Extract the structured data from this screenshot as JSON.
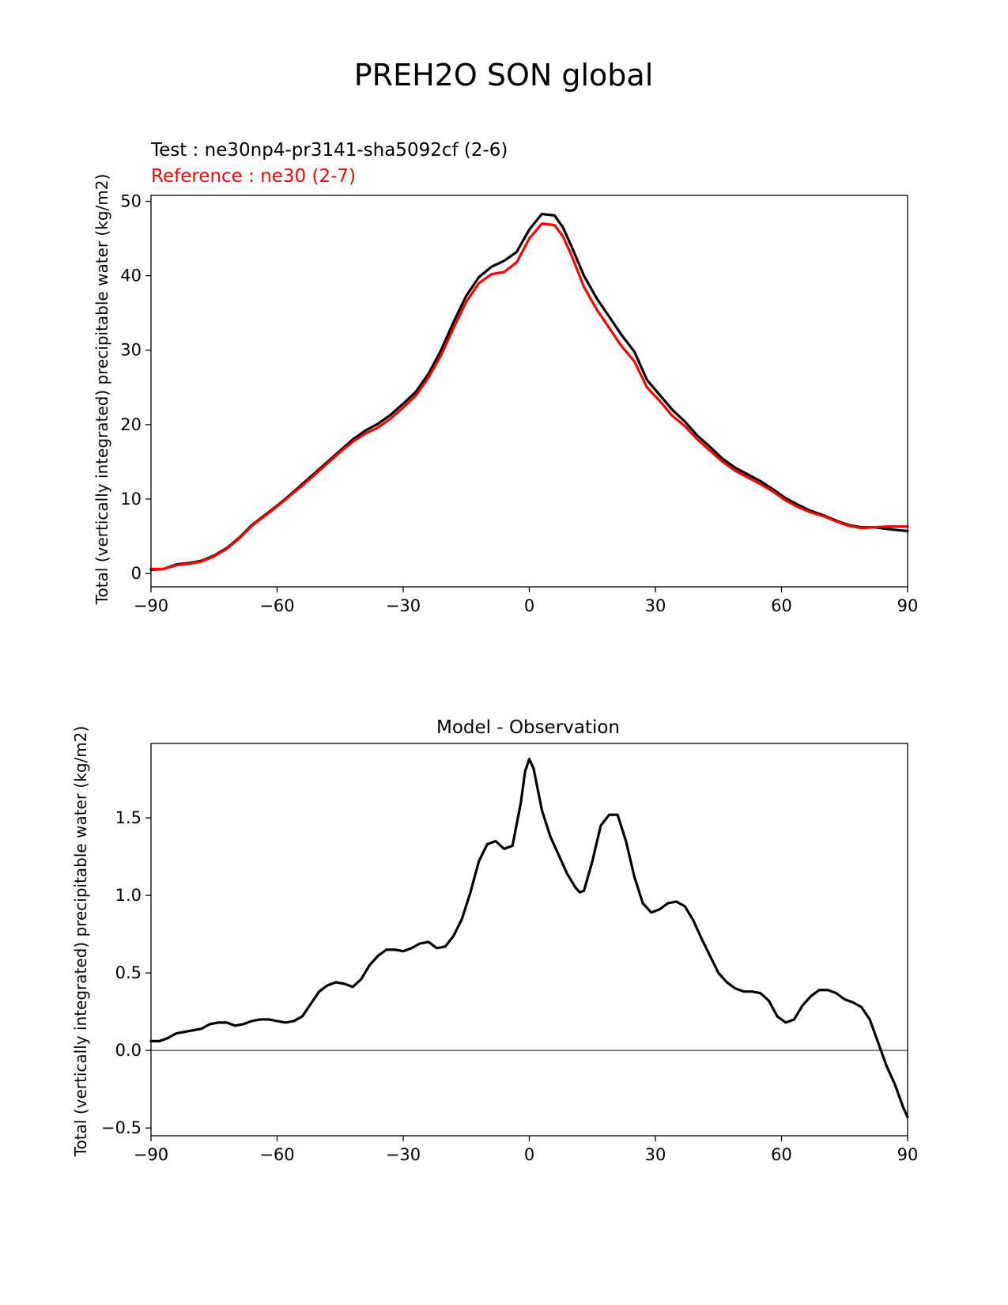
{
  "figure": {
    "title": "PREH2O SON global"
  },
  "chart_data": [
    {
      "type": "line",
      "title": "",
      "test_label": "Test : ne30np4-pr3141-sha5092cf (2-6)",
      "reference_label": "Reference : ne30 (2-7)",
      "xlabel": "",
      "ylabel": "Total (vertically integrated) precipitable water (kg/m2)",
      "xlim": [
        -90,
        90
      ],
      "ylim": [
        -1.8,
        50.8
      ],
      "xticks": [
        -90,
        -60,
        -30,
        0,
        30,
        60,
        90
      ],
      "xtick_labels": [
        "−90",
        "−60",
        "−30",
        "0",
        "30",
        "60",
        "90"
      ],
      "yticks": [
        0,
        10,
        20,
        30,
        40,
        50
      ],
      "ytick_labels": [
        "0",
        "10",
        "20",
        "30",
        "40",
        "50"
      ],
      "grid": false,
      "colors": {
        "test": "#000000",
        "reference": "#ff0000"
      },
      "series": [
        {
          "name": "Test",
          "color": "#000000",
          "x": [
            -90,
            -87,
            -84,
            -81,
            -78,
            -75,
            -72,
            -69,
            -66,
            -63,
            -60,
            -57,
            -54,
            -51,
            -48,
            -45,
            -42,
            -39,
            -36,
            -33,
            -30,
            -27,
            -24,
            -21,
            -18,
            -15,
            -12,
            -9,
            -6,
            -3,
            0,
            3,
            6,
            8,
            10,
            13,
            16,
            19,
            22,
            25,
            28,
            31,
            34,
            37,
            40,
            43,
            46,
            49,
            52,
            55,
            58,
            61,
            64,
            67,
            70,
            73,
            76,
            79,
            82,
            85,
            88,
            90
          ],
          "values": [
            0.5,
            0.6,
            1.2,
            1.4,
            1.7,
            2.4,
            3.4,
            4.8,
            6.5,
            7.8,
            9.1,
            10.5,
            12.0,
            13.5,
            15.0,
            16.5,
            18.0,
            19.2,
            20.1,
            21.3,
            22.8,
            24.4,
            26.8,
            30.0,
            33.8,
            37.3,
            39.8,
            41.2,
            42.0,
            43.2,
            46.2,
            48.3,
            48.1,
            46.5,
            44.0,
            40.0,
            37.0,
            34.5,
            32.0,
            29.8,
            26.0,
            24.0,
            22.0,
            20.4,
            18.5,
            17.0,
            15.4,
            14.2,
            13.3,
            12.4,
            11.3,
            10.1,
            9.2,
            8.4,
            7.8,
            7.1,
            6.5,
            6.2,
            6.2,
            6.0,
            5.8,
            5.7
          ]
        },
        {
          "name": "Reference",
          "color": "#ff0000",
          "x": [
            -90,
            -87,
            -84,
            -81,
            -78,
            -75,
            -72,
            -69,
            -66,
            -63,
            -60,
            -57,
            -54,
            -51,
            -48,
            -45,
            -42,
            -39,
            -36,
            -33,
            -30,
            -27,
            -24,
            -21,
            -18,
            -15,
            -12,
            -9,
            -6,
            -3,
            0,
            3,
            6,
            8,
            10,
            13,
            16,
            19,
            22,
            25,
            28,
            31,
            34,
            37,
            40,
            43,
            46,
            49,
            52,
            55,
            58,
            61,
            64,
            67,
            70,
            73,
            76,
            79,
            82,
            85,
            88,
            90
          ],
          "values": [
            0.6,
            0.6,
            1.1,
            1.3,
            1.6,
            2.3,
            3.3,
            4.7,
            6.4,
            7.7,
            9.0,
            10.4,
            11.8,
            13.3,
            14.8,
            16.3,
            17.7,
            18.8,
            19.6,
            20.8,
            22.3,
            23.9,
            26.3,
            29.3,
            33.0,
            36.5,
            39.0,
            40.2,
            40.5,
            41.8,
            45.0,
            47.0,
            46.8,
            45.3,
            42.8,
            38.5,
            35.5,
            33.0,
            30.5,
            28.5,
            25.0,
            23.2,
            21.2,
            19.8,
            18.0,
            16.5,
            15.0,
            13.8,
            12.9,
            12.0,
            11.0,
            9.8,
            8.9,
            8.2,
            7.7,
            7.0,
            6.4,
            6.1,
            6.2,
            6.3,
            6.3,
            6.3
          ]
        }
      ]
    },
    {
      "type": "line",
      "title": "Model - Observation",
      "xlabel": "",
      "ylabel": "Total (vertically integrated) precipitable water (kg/m2)",
      "xlim": [
        -90,
        90
      ],
      "ylim": [
        -0.55,
        1.98
      ],
      "xticks": [
        -90,
        -60,
        -30,
        0,
        30,
        60,
        90
      ],
      "xtick_labels": [
        "−90",
        "−60",
        "−30",
        "0",
        "30",
        "60",
        "90"
      ],
      "yticks": [
        -0.5,
        0.0,
        0.5,
        1.0,
        1.5
      ],
      "ytick_labels": [
        "−0.5",
        "0.0",
        "0.5",
        "1.0",
        "1.5"
      ],
      "zero_line_color": "#808080",
      "grid": false,
      "series": [
        {
          "name": "Model - Observation",
          "color": "#000000",
          "x": [
            -90,
            -88,
            -86,
            -84,
            -82,
            -80,
            -78,
            -76,
            -74,
            -72,
            -70,
            -68,
            -66,
            -64,
            -62,
            -60,
            -58,
            -56,
            -54,
            -52,
            -50,
            -48,
            -46,
            -44,
            -42,
            -40,
            -38,
            -36,
            -34,
            -32,
            -30,
            -28,
            -26,
            -24,
            -22,
            -20,
            -18,
            -16,
            -14,
            -12,
            -10,
            -8,
            -6,
            -4,
            -2,
            -1,
            0,
            1,
            3,
            5,
            7,
            9,
            11,
            12,
            13,
            15,
            17,
            19,
            21,
            23,
            25,
            27,
            29,
            31,
            33,
            35,
            37,
            39,
            41,
            43,
            45,
            47,
            49,
            51,
            53,
            55,
            57,
            59,
            61,
            63,
            65,
            67,
            69,
            71,
            73,
            75,
            77,
            79,
            81,
            83,
            85,
            87,
            89,
            90
          ],
          "values": [
            0.06,
            0.06,
            0.08,
            0.11,
            0.12,
            0.13,
            0.14,
            0.17,
            0.18,
            0.18,
            0.16,
            0.17,
            0.19,
            0.2,
            0.2,
            0.19,
            0.18,
            0.19,
            0.22,
            0.3,
            0.38,
            0.42,
            0.44,
            0.43,
            0.41,
            0.46,
            0.55,
            0.61,
            0.65,
            0.65,
            0.64,
            0.66,
            0.69,
            0.7,
            0.66,
            0.67,
            0.74,
            0.85,
            1.02,
            1.22,
            1.33,
            1.35,
            1.3,
            1.32,
            1.6,
            1.8,
            1.88,
            1.82,
            1.55,
            1.38,
            1.26,
            1.14,
            1.05,
            1.02,
            1.03,
            1.22,
            1.45,
            1.52,
            1.52,
            1.35,
            1.12,
            0.95,
            0.89,
            0.91,
            0.95,
            0.96,
            0.93,
            0.84,
            0.72,
            0.61,
            0.5,
            0.44,
            0.4,
            0.38,
            0.38,
            0.37,
            0.32,
            0.22,
            0.18,
            0.2,
            0.29,
            0.35,
            0.39,
            0.39,
            0.37,
            0.33,
            0.31,
            0.28,
            0.2,
            0.05,
            -0.1,
            -0.22,
            -0.37,
            -0.43
          ]
        }
      ]
    }
  ]
}
